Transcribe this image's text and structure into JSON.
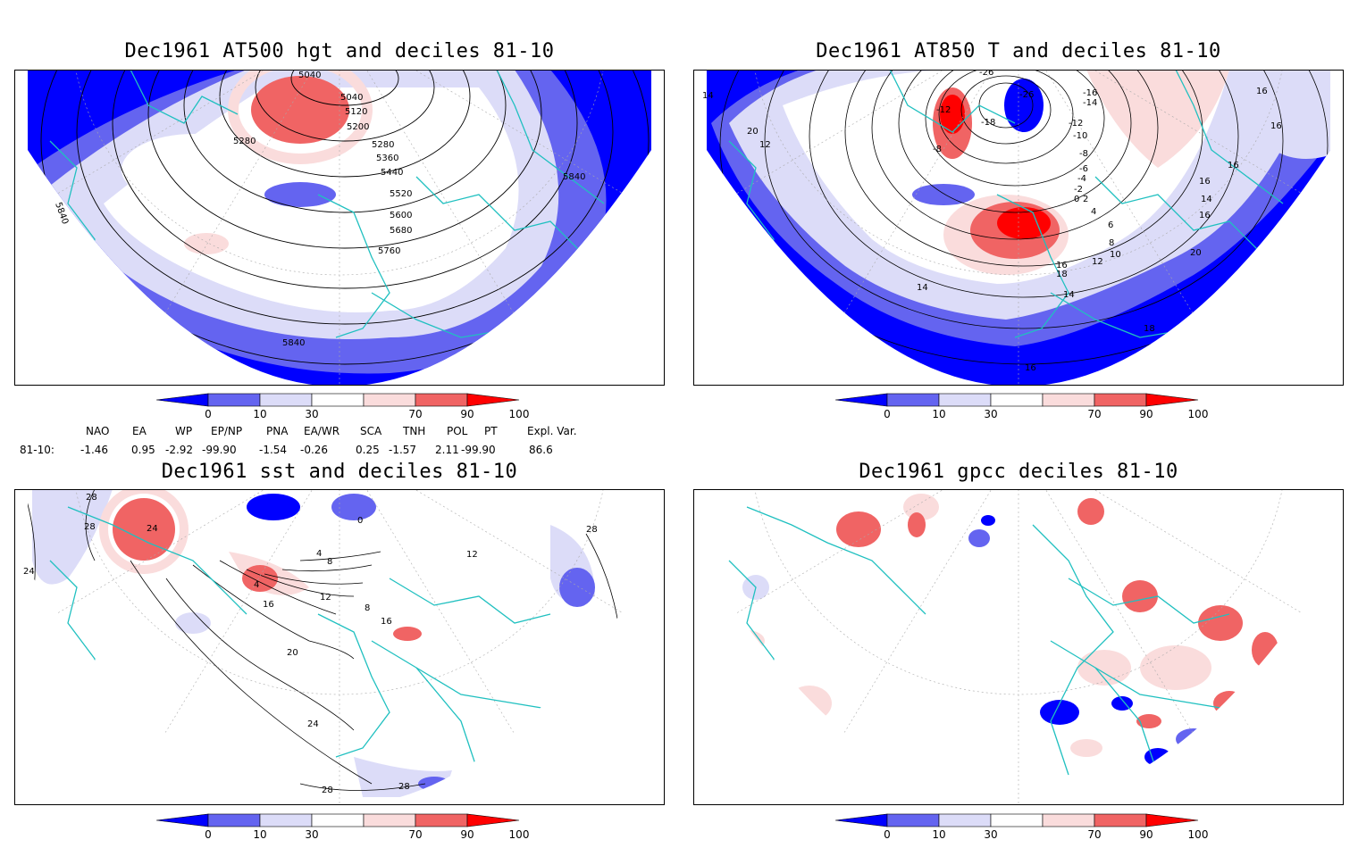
{
  "panels": {
    "tl": {
      "title": "Dec1961 AT500 hgt and deciles 81-10",
      "contour_labels": [
        "5040",
        "5040",
        "5120",
        "5200",
        "5280",
        "5280",
        "5360",
        "5440",
        "5520",
        "5600",
        "5680",
        "5760",
        "5840",
        "5840",
        "5840"
      ]
    },
    "tr": {
      "title": "Dec1961 AT850 T and deciles 81-10",
      "contour_labels": [
        "-26",
        "-26",
        "-12",
        "-18",
        "-8",
        "-16",
        "-14",
        "-12",
        "-10",
        "-8",
        "-6",
        "-4",
        "-2",
        "0",
        "2",
        "4",
        "6",
        "8",
        "10",
        "12",
        "14",
        "16",
        "18",
        "20",
        "12",
        "14",
        "16",
        "16",
        "16",
        "18",
        "20",
        "16",
        "14",
        "16",
        "14",
        "16"
      ]
    },
    "bl": {
      "title": "Dec1961 sst and deciles 81-10",
      "contour_labels": [
        "28",
        "28",
        "24",
        "24",
        "0",
        "4",
        "8",
        "12",
        "16",
        "20",
        "24",
        "28",
        "28",
        "4",
        "8",
        "12",
        "16",
        "28"
      ]
    },
    "br": {
      "title": "Dec1961 gpcc deciles 81-10"
    }
  },
  "colorbar": {
    "ticks": [
      "0",
      "10",
      "30",
      "70",
      "90",
      "100"
    ],
    "colors": [
      "#0000ff",
      "#6464f0",
      "#dcdcf8",
      "#ffffff",
      "#fadcdc",
      "#f06464",
      "#ff0000"
    ]
  },
  "indices": {
    "headers": [
      "NAO",
      "EA",
      "WP",
      "EP/NP",
      "PNA",
      "EA/WR",
      "SCA",
      "TNH",
      "POL",
      "PT",
      "Expl. Var."
    ],
    "row_label": "81-10:",
    "values": [
      "-1.46",
      "0.95",
      "-2.92",
      "-99.90",
      "-1.54",
      "-0.26",
      "0.25",
      "-1.57",
      "2.11",
      "-99.90",
      "86.6"
    ]
  }
}
